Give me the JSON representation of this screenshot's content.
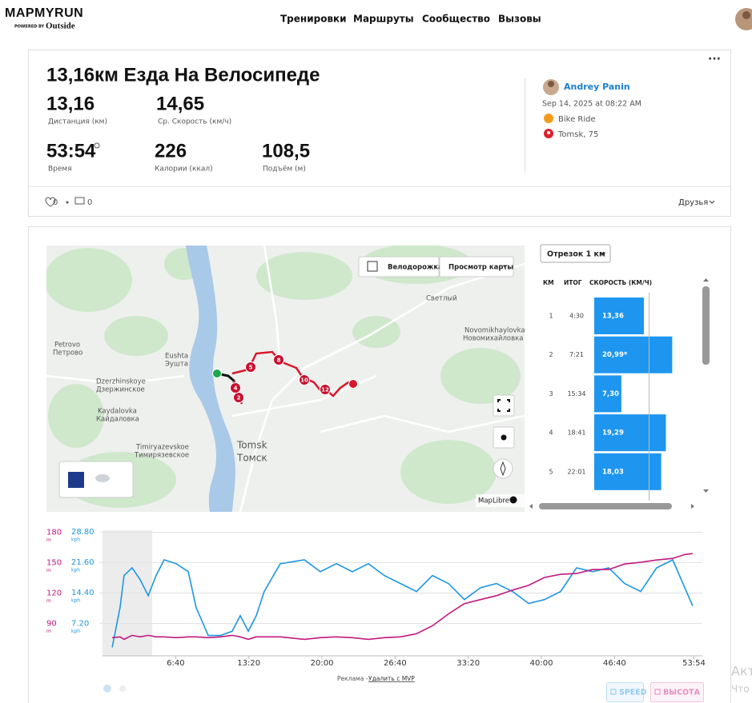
{
  "header": {
    "logo": "MAPMYRUN",
    "powered_by": "POWERED BY",
    "brand": "Outside",
    "nav": [
      "Тренировки",
      "Маршруты",
      "Сообщество",
      "Вызовы"
    ]
  },
  "activity": {
    "title": "13,16км Езда На Велосипеде",
    "stats": [
      {
        "value": "13,16",
        "label": "Дистанция (км)"
      },
      {
        "value": "14,65",
        "label": "Ср. Скорость (км/ч)"
      },
      {
        "value": "53:54",
        "label": "Время"
      },
      {
        "value": "226",
        "label": "Калории (ккал)"
      },
      {
        "value": "108,5",
        "label": "Подъём (м)"
      }
    ],
    "likes": "0",
    "comments": "0",
    "privacy": "Друзья"
  },
  "user": {
    "name": "Andrey Panin",
    "date": "Sep 14, 2025 at 08:22 AM",
    "activity_type": "Bike Ride",
    "location": "Tomsk, 75"
  },
  "map": {
    "bike_lane": "Велодорожка",
    "view": "Просмотр карты",
    "attribution": "MapLibre",
    "labels": [
      "Petrovo",
      "Петрово",
      "Eushta",
      "Эушта",
      "Dzerzhinskoye",
      "Дзержинское",
      "Kaydalovka",
      "Кайдаловка",
      "Timiryazevskoe",
      "Тимирязевское",
      "Tomsk",
      "Томск",
      "Novomikhaylovka",
      "Новомихайловка",
      "Светлый"
    ],
    "markers": [
      "2",
      "4",
      "5",
      "8",
      "10",
      "12"
    ]
  },
  "splits": {
    "dropdown": "Отрезок 1 км",
    "columns": [
      "КМ",
      "ИТОГ",
      "СКОРОСТЬ (КМ/Ч)"
    ],
    "totals": [
      "4:30",
      "7:21",
      "15:34",
      "18:41",
      "22:01"
    ]
  },
  "chart_data": [
    {
      "type": "bar",
      "categories": [
        "1",
        "2",
        "3",
        "4",
        "5"
      ],
      "values": [
        13.36,
        20.99,
        7.3,
        19.29,
        18.03
      ],
      "value_labels": [
        "13,36",
        "20,99*",
        "7,30",
        "19,29",
        "18,03"
      ],
      "color": "#1e96f0"
    },
    {
      "type": "line",
      "x": [
        53,
        96,
        118,
        162,
        206,
        250,
        293,
        337,
        403,
        469,
        512,
        578,
        644,
        709,
        753,
        797,
        841,
        884,
        972,
        1104,
        1191,
        1279,
        1366,
        1454,
        1541,
        1629,
        1717,
        1804,
        1892,
        1979,
        2067,
        2154,
        2242,
        2330,
        2417,
        2505,
        2592,
        2680,
        2768,
        2855,
        2943,
        3030,
        3118,
        3184,
        3227
      ],
      "xlim": [
        0,
        3280
      ],
      "xticks": [
        {
          "value": 400,
          "label": "6:40"
        },
        {
          "value": 800,
          "label": "13:20"
        },
        {
          "value": 1200,
          "label": "20:00"
        },
        {
          "value": 1600,
          "label": "26:40"
        },
        {
          "value": 2000,
          "label": "33:20"
        },
        {
          "value": 2400,
          "label": "40:00"
        },
        {
          "value": 2800,
          "label": "46:40"
        },
        {
          "value": 3234,
          "label": "53:54"
        }
      ],
      "ylim": [
        58,
        182
      ],
      "yticks": [
        90,
        120,
        150,
        180
      ],
      "y_unit": "m",
      "y2lim": [
        -0.5,
        29.2
      ],
      "y2ticks": [
        {
          "value": 7.2,
          "label": "7.20"
        },
        {
          "value": 14.4,
          "label": "14.40"
        },
        {
          "value": 21.6,
          "label": "21.60"
        },
        {
          "value": 28.8,
          "label": "28.80"
        }
      ],
      "y2_unit": "kph",
      "grid": true,
      "series": [
        {
          "name": "SPEED",
          "color": "#1e96e0",
          "axis": "y2",
          "values": [
            1.5,
            10.9,
            18.5,
            20.3,
            17.5,
            13.7,
            18.5,
            22.2,
            21.3,
            19.4,
            10.9,
            4.3,
            4.3,
            5.3,
            9.0,
            5.3,
            9.0,
            14.7,
            21.3,
            22.2,
            19.4,
            21.3,
            19.4,
            21.3,
            18.5,
            16.6,
            14.7,
            18.5,
            16.6,
            12.8,
            15.6,
            16.6,
            14.7,
            11.9,
            12.8,
            14.7,
            20.3,
            19.4,
            20.3,
            16.6,
            14.7,
            20.3,
            22.2,
            15.6,
            11.3
          ]
        },
        {
          "name": "ВЫСОТА",
          "color": "#c2187f",
          "values": [
            75.9,
            76.7,
            74.3,
            78.2,
            76.7,
            78.2,
            76.7,
            76.7,
            75.9,
            76.7,
            76.7,
            75.9,
            76.7,
            78.2,
            76.7,
            74.3,
            76.7,
            76.7,
            76.7,
            74.3,
            75.9,
            76.7,
            75.9,
            74.3,
            75.9,
            76.7,
            79.8,
            87.6,
            99.4,
            109.6,
            113.5,
            117.4,
            122.9,
            127.6,
            135.4,
            138.5,
            139.3,
            143.2,
            143.2,
            148.7,
            150.3,
            152.6,
            154.2,
            158.1,
            158.9
          ]
        }
      ]
    }
  ],
  "footer": {
    "ad": "Реклама -",
    "remove": "Удалить с MVP"
  },
  "overlay": [
    "Акт",
    "Что"
  ]
}
